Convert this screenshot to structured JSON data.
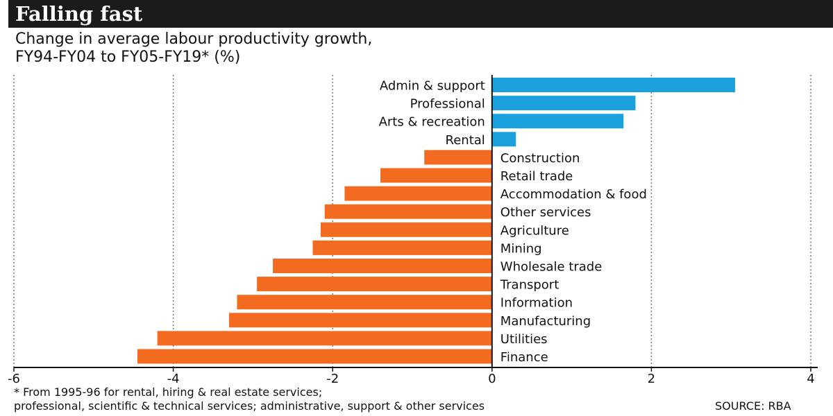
{
  "header": {
    "title": "Falling fast",
    "subtitle_line1": "Change in average labour productivity growth,",
    "subtitle_line2": "FY94-FY04 to FY05-FY19* (%)"
  },
  "footer": {
    "note_line1": "* From 1995-96 for rental, hiring & real estate services;",
    "note_line2": "professional, scientific & technical services; administrative, support & other services",
    "source": "SOURCE: RBA"
  },
  "colors": {
    "positive": "#1aa0dc",
    "negative": "#f26b21",
    "title_bar": "#1b1b1b"
  },
  "chart_data": {
    "type": "bar",
    "orientation": "horizontal",
    "categories": [
      "Admin & support",
      "Professional",
      "Arts & recreation",
      "Rental",
      "Construction",
      "Retail trade",
      "Accommodation & food",
      "Other services",
      "Agriculture",
      "Mining",
      "Wholesale trade",
      "Transport",
      "Information",
      "Manufacturing",
      "Utilities",
      "Finance"
    ],
    "values": [
      3.05,
      1.8,
      1.65,
      0.3,
      -0.85,
      -1.4,
      -1.85,
      -2.1,
      -2.15,
      -2.25,
      -2.75,
      -2.95,
      -3.2,
      -3.3,
      -4.2,
      -4.45
    ],
    "xlim": [
      -6,
      4
    ],
    "xticks": [
      -6,
      -4,
      -2,
      0,
      2,
      4
    ],
    "grid": "vertical dashed",
    "title": "Falling fast"
  }
}
